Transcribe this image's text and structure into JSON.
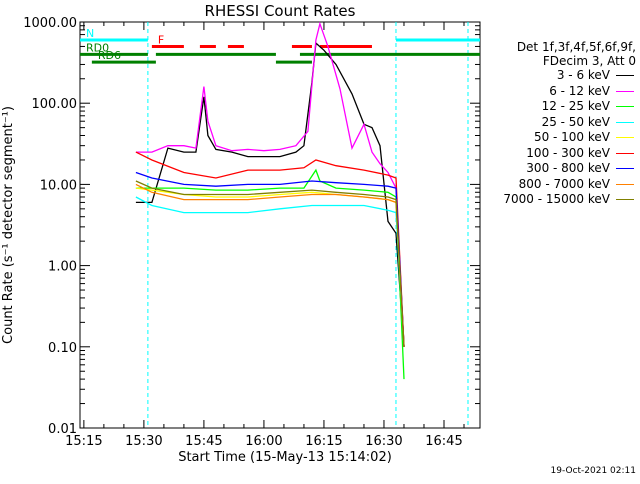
{
  "chart_data": {
    "type": "line",
    "title": "RHESSI Count Rates",
    "xlabel": "Start Time (15-May-13 15:14:02)",
    "ylabel": "Count Rate (s⁻¹ detector segment⁻¹)",
    "y_scale": "log",
    "ylim": [
      0.01,
      1000
    ],
    "xlim": [
      "15:14:02",
      "16:54:00"
    ],
    "x_ticks": [
      "15:15",
      "15:30",
      "15:45",
      "16:00",
      "16:15",
      "16:30",
      "16:45"
    ],
    "y_ticks": [
      "0.01",
      "0.10",
      "1.00",
      "10.00",
      "100.00",
      "1000.00"
    ],
    "series": [
      {
        "name": "3 - 6 keV",
        "color": "#000000",
        "x": [
          "15:28",
          "15:32",
          "15:36",
          "15:40",
          "15:43",
          "15:45",
          "15:46",
          "15:48",
          "15:52",
          "15:56",
          "16:00",
          "16:04",
          "16:08",
          "16:10",
          "16:12",
          "16:13",
          "16:15",
          "16:18",
          "16:22",
          "16:25",
          "16:27",
          "16:29",
          "16:31",
          "16:33",
          "16:35"
        ],
        "y": [
          6,
          6,
          28,
          25,
          25,
          120,
          40,
          27,
          25,
          22,
          22,
          22,
          25,
          30,
          180,
          550,
          450,
          300,
          130,
          55,
          50,
          30,
          3.5,
          2.5,
          0.1
        ]
      },
      {
        "name": "6 - 12 keV",
        "color": "#ff00ff",
        "x": [
          "15:28",
          "15:32",
          "15:36",
          "15:40",
          "15:43",
          "15:45",
          "15:46",
          "15:48",
          "15:52",
          "15:56",
          "16:00",
          "16:04",
          "16:08",
          "16:11",
          "16:13",
          "16:14",
          "16:16",
          "16:19",
          "16:22",
          "16:25",
          "16:27",
          "16:29",
          "16:31",
          "16:33",
          "16:35"
        ],
        "y": [
          25,
          25,
          30,
          30,
          28,
          160,
          60,
          30,
          26,
          27,
          26,
          27,
          30,
          45,
          600,
          950,
          500,
          150,
          28,
          55,
          25,
          18,
          14,
          9,
          0.1
        ]
      },
      {
        "name": "12 - 25 keV",
        "color": "#00ff00",
        "x": [
          "15:28",
          "15:32",
          "15:40",
          "15:48",
          "15:56",
          "16:04",
          "16:10",
          "16:13",
          "16:14",
          "16:18",
          "16:25",
          "16:31",
          "16:33",
          "16:35"
        ],
        "y": [
          9,
          9,
          9,
          8.5,
          8.5,
          9,
          9,
          15,
          11,
          9,
          8.5,
          8,
          7,
          0.04
        ]
      },
      {
        "name": "25 - 50 keV",
        "color": "#00ffff",
        "x": [
          "15:28",
          "15:32",
          "15:40",
          "15:48",
          "15:56",
          "16:04",
          "16:12",
          "16:18",
          "16:25",
          "16:31",
          "16:33",
          "16:35"
        ],
        "y": [
          7,
          5.5,
          4.5,
          4.5,
          4.5,
          5,
          5.5,
          5.5,
          5.5,
          4.8,
          4.5,
          0.1
        ]
      },
      {
        "name": "50 - 100 keV",
        "color": "#fffb00",
        "x": [
          "15:28",
          "15:32",
          "15:40",
          "15:48",
          "15:56",
          "16:04",
          "16:12",
          "16:18",
          "16:25",
          "16:31",
          "16:33",
          "16:35"
        ],
        "y": [
          9,
          8.5,
          7.5,
          7,
          7,
          7.5,
          8,
          7.5,
          7,
          6.5,
          6,
          0.1
        ]
      },
      {
        "name": "100 - 300 keV",
        "color": "#ff0000",
        "x": [
          "15:28",
          "15:32",
          "15:40",
          "15:48",
          "15:56",
          "16:04",
          "16:10",
          "16:13",
          "16:18",
          "16:25",
          "16:31",
          "16:33",
          "16:35"
        ],
        "y": [
          25,
          20,
          14,
          12,
          15,
          15,
          16,
          20,
          17,
          15,
          13,
          12,
          0.1
        ]
      },
      {
        "name": "300 - 800 keV",
        "color": "#0000ff",
        "x": [
          "15:28",
          "15:32",
          "15:40",
          "15:48",
          "15:56",
          "16:04",
          "16:12",
          "16:18",
          "16:25",
          "16:31",
          "16:33",
          "16:35"
        ],
        "y": [
          14,
          12,
          10,
          9.5,
          10,
          10,
          11,
          10.5,
          10,
          9.5,
          9,
          0.1
        ]
      },
      {
        "name": "800 - 7000 keV",
        "color": "#ff8000",
        "x": [
          "15:28",
          "15:32",
          "15:40",
          "15:48",
          "15:56",
          "16:04",
          "16:12",
          "16:18",
          "16:25",
          "16:31",
          "16:33",
          "16:35"
        ],
        "y": [
          10,
          8,
          6.5,
          6.5,
          6.5,
          7,
          7.5,
          7.5,
          7,
          6.5,
          6,
          0.1
        ]
      },
      {
        "name": "7000 - 15000 keV",
        "color": "#808000",
        "x": [
          "15:28",
          "15:32",
          "15:40",
          "15:48",
          "15:56",
          "16:04",
          "16:12",
          "16:18",
          "16:25",
          "16:31",
          "16:33",
          "16:35"
        ],
        "y": [
          11,
          9,
          7.5,
          7.5,
          7.5,
          8,
          8.5,
          8,
          7.5,
          7,
          6.5,
          0.1
        ]
      }
    ],
    "flags": [
      {
        "label": "N",
        "color": "#00ffff",
        "level": 600,
        "intervals": [
          [
            "15:14:02",
            "15:31"
          ],
          [
            "16:33",
            "16:54"
          ]
        ]
      },
      {
        "label": "F",
        "color": "#ff0000",
        "level": 500,
        "intervals": [
          [
            "15:32",
            "15:40"
          ],
          [
            "15:44",
            "15:48"
          ],
          [
            "15:51",
            "15:55"
          ],
          [
            "16:07",
            "16:12"
          ],
          [
            "16:14",
            "16:27"
          ]
        ]
      },
      {
        "label": "RD0",
        "color": "#008000",
        "level": 400,
        "intervals": [
          [
            "15:14:02",
            "15:31"
          ],
          [
            "15:33",
            "16:03"
          ],
          [
            "16:09",
            "16:54"
          ]
        ]
      },
      {
        "label": "RD6",
        "color": "#008000",
        "level": 320,
        "intervals": [
          [
            "15:17",
            "15:33"
          ],
          [
            "16:03",
            "16:12"
          ]
        ]
      }
    ],
    "vertical_markers": [
      {
        "t": "15:31",
        "color": "#00ffff"
      },
      {
        "t": "16:33",
        "color": "#00ffff"
      },
      {
        "t": "16:51",
        "color": "#00ffff"
      }
    ],
    "legend": {
      "position": "right",
      "header": [
        "Det 1f,3f,4f,5f,6f,9f,",
        "FDecim 3, Att 0"
      ]
    },
    "grid": false
  },
  "timestamp": "19-Oct-2021 02:11"
}
